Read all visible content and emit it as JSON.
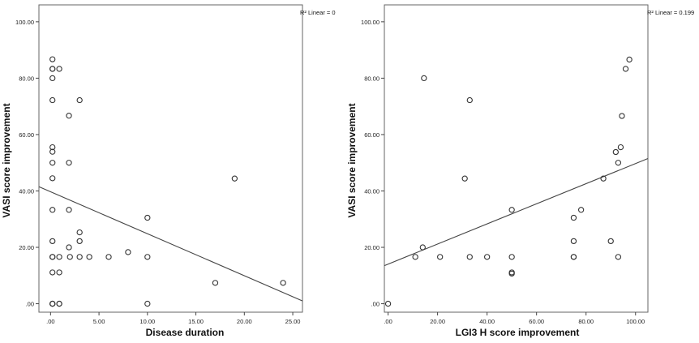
{
  "chart_data": [
    {
      "type": "scatter",
      "xlabel": "Disease duration",
      "ylabel": "VASI score improvement",
      "r2_label": "R² Linear = 0",
      "xlim": [
        -1.2,
        26
      ],
      "ylim": [
        -3,
        106
      ],
      "x_ticks": [
        ".00",
        "5.00",
        "10.00",
        "15.00",
        "20.00",
        "25.00"
      ],
      "y_ticks": [
        ".00",
        "20.00",
        "40.00",
        "60.00",
        "80.00",
        "100.00"
      ],
      "fit_line": {
        "x": [
          -1.2,
          26
        ],
        "y": [
          41.5,
          1.0
        ]
      },
      "points": {
        "x": [
          0.2,
          0.2,
          0.2,
          0.2,
          0.2,
          0.2,
          0.2,
          0.2,
          0.2,
          0.2,
          0.2,
          0.2,
          0.2,
          0.2,
          0.2,
          0.2,
          0.2,
          0.9,
          0.9,
          0.9,
          0.9,
          0.9,
          1.9,
          1.9,
          1.9,
          1.9,
          2,
          3,
          3,
          3,
          3,
          4,
          6,
          8,
          10,
          10,
          10,
          17,
          19,
          24
        ],
        "y": [
          86.7,
          83.3,
          83.3,
          80,
          72.2,
          55.5,
          53.9,
          50,
          44.5,
          33.3,
          22.2,
          16.6,
          16.6,
          11.1,
          0,
          0,
          0,
          83.3,
          16.6,
          11.1,
          0,
          0,
          66.7,
          50,
          33.3,
          20,
          16.6,
          72.2,
          25.3,
          22.2,
          16.6,
          16.6,
          16.6,
          18.3,
          30.5,
          16.6,
          0,
          7.4,
          44.4,
          7.4
        ]
      }
    },
    {
      "type": "scatter",
      "xlabel": "LGI3 H score improvement",
      "ylabel": "VASI score improvement",
      "r2_label": "R² Linear = 0.199",
      "xlim": [
        -1.5,
        105
      ],
      "ylim": [
        -3,
        106
      ],
      "x_ticks": [
        ".00",
        "20.00",
        "40.00",
        "60.00",
        "80.00",
        "100.00"
      ],
      "y_ticks": [
        ".00",
        "20.00",
        "40.00",
        "60.00",
        "80.00",
        "100.00"
      ],
      "fit_line": {
        "x": [
          -1.5,
          105
        ],
        "y": [
          13.5,
          51.5
        ]
      },
      "points": {
        "x": [
          0,
          11,
          14,
          14.5,
          21,
          31,
          33,
          33,
          40,
          50,
          50,
          50,
          50,
          75,
          75,
          75,
          75,
          78,
          87,
          90,
          92,
          93,
          93,
          94.5,
          94,
          96,
          97.5
        ],
        "y": [
          0,
          16.6,
          20,
          80,
          16.6,
          44.4,
          72.2,
          16.6,
          16.6,
          33.3,
          16.6,
          11.1,
          10.7,
          30.5,
          22.2,
          16.6,
          16.6,
          33.3,
          44.4,
          22.2,
          53.8,
          50,
          16.6,
          66.6,
          55.5,
          83.3,
          86.6
        ]
      }
    }
  ]
}
